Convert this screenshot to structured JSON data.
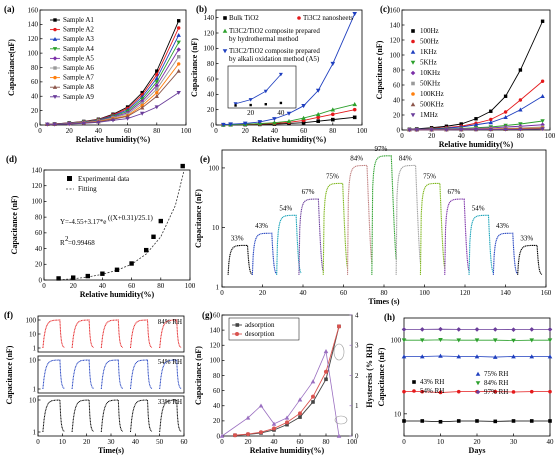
{
  "chart_data": [
    {
      "panel": "(a)",
      "type": "line",
      "xlabel": "Relative humidity(%)",
      "ylabel": "Capacitance(nF)",
      "xlim": [
        0,
        100
      ],
      "ylim": [
        0,
        160
      ],
      "xticks": [
        0,
        20,
        40,
        60,
        80,
        100
      ],
      "yticks": [
        0,
        20,
        40,
        60,
        80,
        100,
        120,
        140,
        160
      ],
      "x": [
        5,
        10,
        20,
        30,
        40,
        50,
        60,
        70,
        80,
        95
      ],
      "series": [
        {
          "name": "Sample A1",
          "color": "#000000",
          "values": [
            1,
            1.5,
            3,
            5,
            8,
            15,
            25,
            45,
            75,
            145
          ]
        },
        {
          "name": "Sample A2",
          "color": "#e41a1c",
          "values": [
            1,
            1.4,
            2.8,
            4.6,
            7.5,
            14,
            23,
            42,
            70,
            135
          ]
        },
        {
          "name": "Sample A3",
          "color": "#1f3fbf",
          "values": [
            1,
            1.3,
            2.6,
            4.3,
            7,
            13,
            21,
            39,
            65,
            125
          ]
        },
        {
          "name": "Sample A4",
          "color": "#2ca02c",
          "values": [
            1,
            1.3,
            2.4,
            4,
            6.5,
            12,
            19,
            36,
            60,
            115
          ]
        },
        {
          "name": "Sample A5",
          "color": "#7b2fa8",
          "values": [
            1,
            1.2,
            2.2,
            3.7,
            6,
            11,
            17,
            33,
            55,
            105
          ]
        },
        {
          "name": "Sample A6",
          "color": "#9a9a9a",
          "values": [
            1,
            1.2,
            2,
            3.4,
            5.5,
            10,
            15,
            30,
            50,
            95
          ]
        },
        {
          "name": "Sample A7",
          "color": "#ff7f0e",
          "values": [
            1,
            1.1,
            1.8,
            3.1,
            5,
            9,
            13,
            27,
            45,
            85
          ]
        },
        {
          "name": "Sample A8",
          "color": "#8c564b",
          "values": [
            1,
            1.1,
            1.6,
            2.8,
            4.5,
            8,
            12,
            24,
            40,
            75
          ]
        },
        {
          "name": "Sample A9",
          "color": "#6a3d9a",
          "values": [
            1,
            1,
            1.4,
            2.4,
            3.8,
            6.5,
            9,
            16,
            25,
            45
          ]
        }
      ]
    },
    {
      "panel": "(b)",
      "type": "line",
      "xlabel": "Relative humidity(%)",
      "ylabel": "Capacitance (nF)",
      "xlim": [
        0,
        100
      ],
      "ylim": [
        0,
        150
      ],
      "xticks": [
        0,
        20,
        40,
        60,
        80,
        100
      ],
      "yticks": [
        0,
        20,
        40,
        60,
        80,
        100,
        120,
        140
      ],
      "x": [
        5,
        10,
        20,
        30,
        40,
        50,
        60,
        70,
        80,
        95
      ],
      "series": [
        {
          "name": "Bulk TiO2",
          "color": "#000000",
          "values": [
            0.2,
            0.3,
            0.5,
            0.8,
            1.2,
            2,
            3,
            5,
            7,
            10
          ]
        },
        {
          "name": "Ti3C2 nanosheets",
          "color": "#e41a1c",
          "values": [
            0.2,
            0.4,
            0.7,
            1.2,
            2,
            3.5,
            6,
            10,
            14,
            20
          ]
        },
        {
          "name": "Ti3C2/TiO2 composite prepared by hydrothermal method",
          "color": "#2ca02c",
          "values": [
            0.3,
            0.5,
            1,
            1.8,
            3,
            5,
            9,
            14,
            20,
            27
          ]
        },
        {
          "name": "Ti3C2/TiO2 composite prepared by alkali oxidation method (A5)",
          "color": "#1f3fbf",
          "values": [
            0.5,
            1,
            2,
            4,
            8,
            15,
            25,
            45,
            80,
            145
          ]
        }
      ],
      "inset": {
        "xticks": [
          20,
          40
        ],
        "x": [
          10,
          20,
          30,
          40
        ],
        "values": [
          0.5,
          1,
          2,
          4
        ]
      }
    },
    {
      "panel": "(c)",
      "type": "line",
      "xlabel": "Relative humidity(%)",
      "ylabel": "Capacitance (nF)",
      "xlim": [
        0,
        100
      ],
      "ylim": [
        0,
        160
      ],
      "xticks": [
        0,
        20,
        40,
        60,
        80,
        100
      ],
      "yticks": [
        0,
        20,
        40,
        60,
        80,
        100,
        120,
        140,
        160
      ],
      "x": [
        5,
        10,
        20,
        30,
        40,
        50,
        60,
        70,
        80,
        95
      ],
      "series": [
        {
          "name": "100Hz",
          "color": "#000000",
          "values": [
            1,
            1.5,
            3,
            5,
            8,
            15,
            25,
            45,
            80,
            145
          ]
        },
        {
          "name": "500Hz",
          "color": "#e41a1c",
          "values": [
            0.8,
            1.1,
            2,
            3.2,
            5,
            9,
            14,
            24,
            40,
            65
          ]
        },
        {
          "name": "1KHz",
          "color": "#1f3fbf",
          "values": [
            0.7,
            1,
            1.6,
            2.6,
            4,
            7,
            10,
            17,
            27,
            45
          ]
        },
        {
          "name": "5KHz",
          "color": "#2ca02c",
          "values": [
            0.5,
            0.7,
            1,
            1.5,
            2,
            3,
            4,
            6,
            8,
            12
          ]
        },
        {
          "name": "10KHz",
          "color": "#7b2fa8",
          "values": [
            0.4,
            0.5,
            0.8,
            1.1,
            1.5,
            2,
            2.8,
            4,
            5,
            7
          ]
        },
        {
          "name": "50KHz",
          "color": "#9a9a9a",
          "values": [
            0.3,
            0.4,
            0.5,
            0.7,
            0.9,
            1.2,
            1.6,
            2.2,
            2.8,
            4
          ]
        },
        {
          "name": "100KHz",
          "color": "#ff7f0e",
          "values": [
            0.2,
            0.3,
            0.4,
            0.5,
            0.7,
            0.9,
            1.2,
            1.6,
            2,
            2.8
          ]
        },
        {
          "name": "500KHz",
          "color": "#8c564b",
          "values": [
            0.2,
            0.2,
            0.3,
            0.4,
            0.5,
            0.6,
            0.8,
            1,
            1.3,
            1.8
          ]
        },
        {
          "name": "1MHz",
          "color": "#6a3d9a",
          "values": [
            0.1,
            0.2,
            0.2,
            0.3,
            0.4,
            0.5,
            0.6,
            0.8,
            1,
            1.4
          ]
        }
      ]
    },
    {
      "panel": "(d)",
      "type": "scatter",
      "xlabel": "Relative humidity(%)",
      "ylabel": "Capacitance (nF)",
      "xlim": [
        0,
        100
      ],
      "ylim": [
        0,
        140
      ],
      "xticks": [
        0,
        20,
        40,
        60,
        80,
        100
      ],
      "yticks": [
        0,
        20,
        40,
        60,
        80,
        100,
        120,
        140
      ],
      "legend": [
        "Experimental data",
        "Fitting"
      ],
      "x": [
        10,
        20,
        30,
        40,
        50,
        60,
        70,
        75,
        80,
        95
      ],
      "values": [
        2,
        3,
        5,
        8,
        13,
        21,
        38,
        55,
        75,
        145
      ],
      "fit_x": [
        8,
        20,
        30,
        40,
        50,
        60,
        70,
        80,
        90,
        96
      ],
      "fit_values": [
        -0.5,
        1.5,
        3.8,
        7.3,
        12.5,
        20,
        33,
        55,
        95,
        140
      ],
      "equation": "Y=-4.55+3.17*e",
      "equation_exp": "((X+0.31)/25.1)",
      "r2": "R",
      "r2_sup": "2",
      "r2_value": "=0.99468"
    },
    {
      "panel": "(e)",
      "type": "line",
      "xlabel": "Times (s)",
      "ylabel": "Capacitance (nF)",
      "xlim": [
        0,
        160
      ],
      "yscale": "log",
      "ylim": [
        1,
        200
      ],
      "xticks": [
        0,
        20,
        40,
        60,
        80,
        100,
        120,
        140,
        160
      ],
      "ytick_labels": [
        "1",
        "10",
        "100"
      ],
      "pulses": [
        {
          "start": 3,
          "label": "33%",
          "peak": 5,
          "color": "#000000"
        },
        {
          "start": 15,
          "label": "43%",
          "peak": 8,
          "color": "#1f3fbf"
        },
        {
          "start": 27,
          "label": "54%",
          "peak": 16,
          "color": "#17a2b8"
        },
        {
          "start": 38,
          "label": "67%",
          "peak": 30,
          "color": "#6a3d9a"
        },
        {
          "start": 50,
          "label": "75%",
          "peak": 55,
          "color": "#7cb518"
        },
        {
          "start": 62,
          "label": "84%",
          "peak": 110,
          "color": "#c08080"
        },
        {
          "start": 74,
          "label": "97%",
          "peak": 160,
          "color": "#2ca02c"
        },
        {
          "start": 86,
          "label": "84%",
          "peak": 110,
          "color": "#a0a0a0"
        },
        {
          "start": 98,
          "label": "75%",
          "peak": 55,
          "color": "#7cb518"
        },
        {
          "start": 110,
          "label": "67%",
          "peak": 30,
          "color": "#7b2fa8"
        },
        {
          "start": 122,
          "label": "54%",
          "peak": 16,
          "color": "#17a2b8"
        },
        {
          "start": 134,
          "label": "43%",
          "peak": 8,
          "color": "#1f3fbf"
        },
        {
          "start": 146,
          "label": "33%",
          "peak": 5,
          "color": "#000000"
        }
      ]
    },
    {
      "panel": "(f)",
      "type": "line",
      "xlabel": "Time(s)",
      "ylabel": "Capacitance (nF)",
      "xlim": [
        0,
        60
      ],
      "xticks": [
        0,
        10,
        20,
        30,
        40,
        50,
        60
      ],
      "subplots": [
        {
          "label": "84% RH",
          "color": "#e41a1c",
          "ytick_labels": [
            "100",
            "10",
            "1"
          ]
        },
        {
          "label": "54% RH",
          "color": "#1f3fbf",
          "ytick_labels": [
            "10",
            "1"
          ]
        },
        {
          "label": "33% RH",
          "color": "#000000",
          "ytick_labels": [
            "10",
            "1"
          ]
        }
      ],
      "cycles": [
        2,
        14,
        26,
        38,
        50
      ]
    },
    {
      "panel": "(g)",
      "type": "line",
      "xlabel": "Relative humidity(%)",
      "ylabel": "Capacitance (nF)",
      "y2label": "Hysteresis (% RH)",
      "xlim": [
        0,
        100
      ],
      "ylim": [
        0,
        160
      ],
      "y2lim": [
        0,
        4
      ],
      "xticks": [
        0,
        20,
        40,
        60,
        80,
        100
      ],
      "yticks": [
        0,
        20,
        40,
        60,
        80,
        100,
        120,
        140,
        160
      ],
      "y2ticks": [
        0,
        1,
        2,
        3,
        4
      ],
      "legend": [
        "adsorption",
        "desorption"
      ],
      "x": [
        10,
        20,
        30,
        40,
        50,
        60,
        70,
        80,
        90
      ],
      "series": [
        {
          "name": "adsorption",
          "color": "#444444",
          "values": [
            1,
            2,
            4,
            8,
            15,
            25,
            45,
            75,
            145
          ]
        },
        {
          "name": "desorption",
          "color": "#d9534f",
          "values": [
            1,
            2.5,
            5,
            10,
            18,
            30,
            52,
            85,
            145
          ]
        }
      ],
      "hysteresis": {
        "color": "#9a6fc0",
        "x": [
          0,
          20,
          30,
          40,
          50,
          60,
          70,
          80,
          90
        ],
        "values": [
          0,
          0.6,
          1,
          0.4,
          0.6,
          1.2,
          1.8,
          2.8,
          0
        ]
      }
    },
    {
      "panel": "(h)",
      "type": "line",
      "xlabel": "Days",
      "ylabel": "Capacitance (nF)",
      "xlim": [
        0,
        40
      ],
      "yscale": "log",
      "ylim": [
        5,
        200
      ],
      "xticks": [
        0,
        10,
        20,
        30,
        40
      ],
      "ytick_labels": [
        "10",
        "100"
      ],
      "x": [
        0,
        5,
        10,
        15,
        20,
        25,
        30,
        35,
        40
      ],
      "series": [
        {
          "name": "43% RH",
          "color": "#000000",
          "values": [
            8,
            8,
            7.8,
            8,
            8,
            7.9,
            8,
            8,
            8
          ]
        },
        {
          "name": "54% RH",
          "color": "#e41a1c",
          "values": [
            20,
            20,
            19.5,
            20,
            20,
            20,
            19.8,
            20,
            20
          ]
        },
        {
          "name": "75% RH",
          "color": "#1f3fbf",
          "values": [
            60,
            60,
            61,
            60,
            60,
            59,
            60,
            60,
            60
          ]
        },
        {
          "name": "84% RH",
          "color": "#2ca02c",
          "values": [
            100,
            100,
            101,
            100,
            100,
            100,
            99,
            100,
            100
          ]
        },
        {
          "name": "97% RH",
          "color": "#6a3d9a",
          "values": [
            140,
            140,
            141,
            140,
            140,
            140,
            139,
            140,
            140
          ]
        }
      ]
    }
  ]
}
